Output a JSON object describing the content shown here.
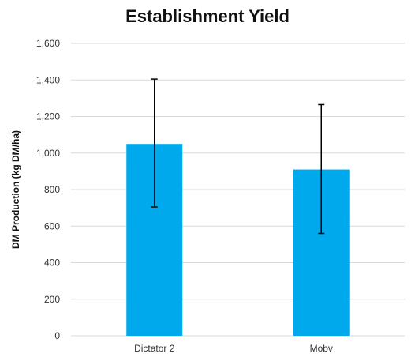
{
  "chart_data": {
    "type": "bar",
    "title": "Establishment Yield",
    "xlabel": "",
    "ylabel": "DM Production (kg DM/ha)",
    "categories": [
      "Dictator 2",
      "Mobv"
    ],
    "series": [
      {
        "values": [
          1050,
          910
        ],
        "error_low": [
          705,
          560
        ],
        "error_high": [
          1405,
          1265
        ],
        "color": "#00a9eb"
      }
    ],
    "ylim": [
      0,
      1600
    ],
    "yticks": [
      0,
      200,
      400,
      600,
      800,
      1000,
      1200,
      1400,
      1600
    ],
    "ytick_labels": [
      "0",
      "200",
      "400",
      "600",
      "800",
      "1,000",
      "1,200",
      "1,400",
      "1,600"
    ],
    "grid": true,
    "legend": "none"
  }
}
